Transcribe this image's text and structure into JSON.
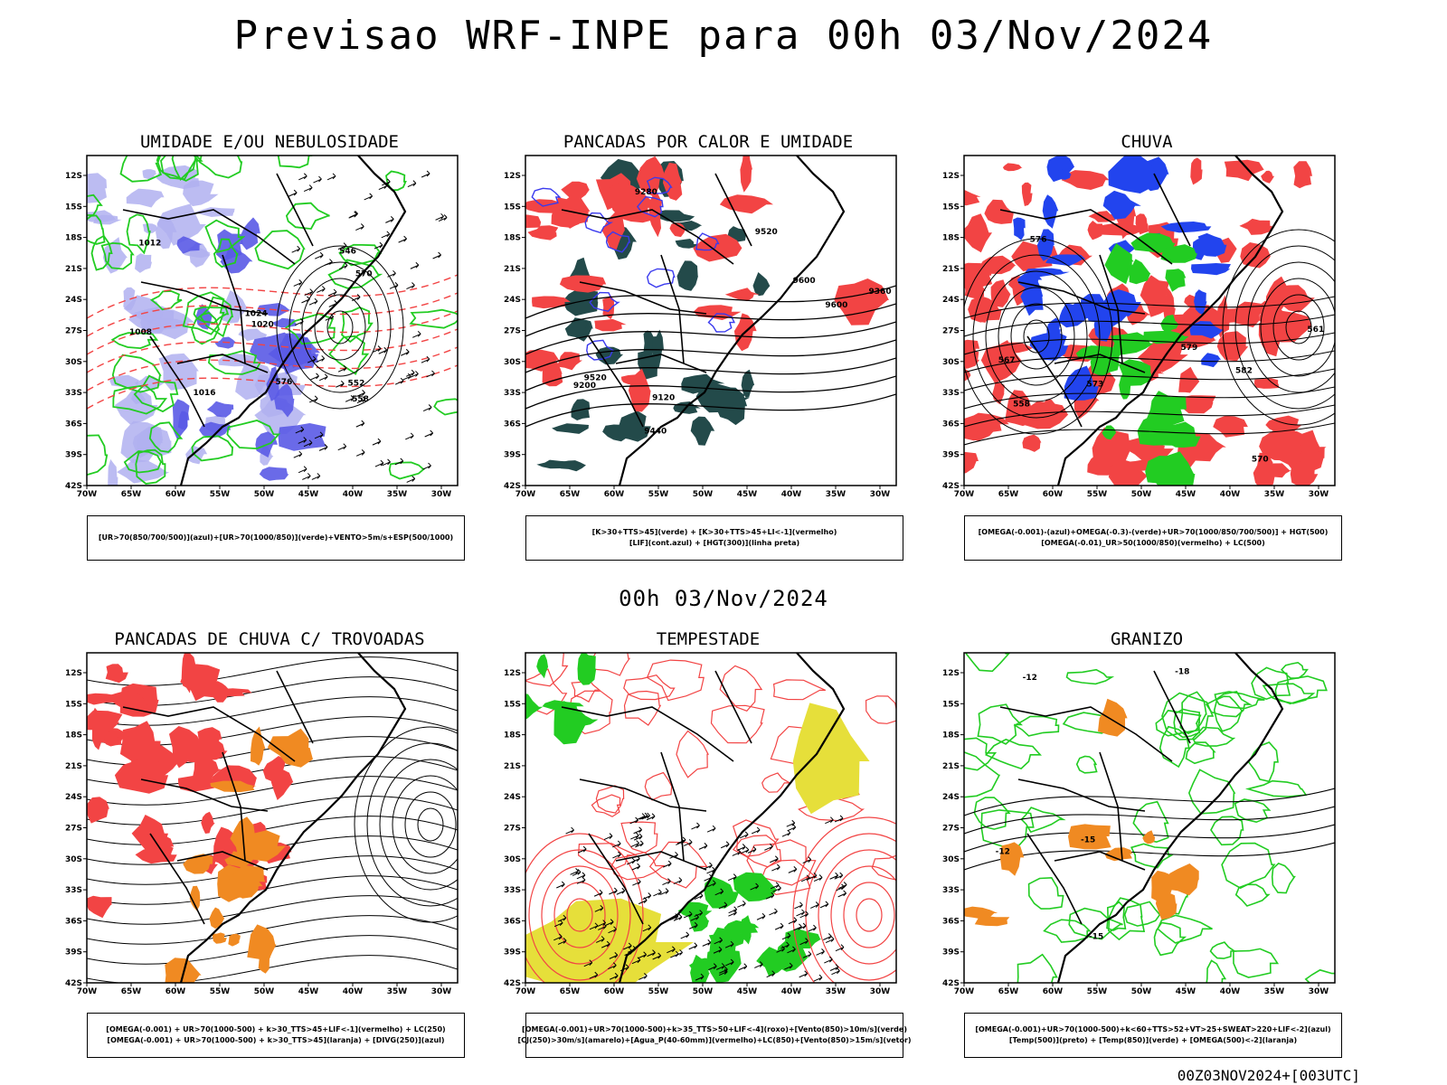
{
  "page": {
    "title": "Previsao WRF-INPE  para 00h 03/Nov/2024",
    "subtitle": "00h 03/Nov/2024",
    "footer": "00Z03NOV2024+[003UTC]"
  },
  "axes": {
    "lat_ticks": [
      "12S",
      "15S",
      "18S",
      "21S",
      "24S",
      "27S",
      "30S",
      "33S",
      "36S",
      "39S",
      "42S"
    ],
    "lon_ticks": [
      "70W",
      "65W",
      "60W",
      "55W",
      "50W",
      "45W",
      "40W",
      "35W",
      "30W"
    ]
  },
  "colors": {
    "blue_humidity": "#5a5ae6",
    "light_blue": "#b0b0f0",
    "green": "#22cc22",
    "red": "#f24444",
    "dark_teal": "#234a4a",
    "orange": "#f08a22",
    "yellow": "#e6df3a",
    "black": "#000000"
  },
  "panels": [
    {
      "id": "umidade",
      "title": "UMIDADE E/OU NEBULOSIDADE",
      "legend": [
        "[UR>70(850/700/500)](azul)+[UR>70(1000/850)](verde)+VENTO>5m/s+ESP(500/1000)"
      ],
      "contour_labels": [
        "1012",
        "1016",
        "1020",
        "1024",
        "1008",
        "570",
        "576",
        "558",
        "552",
        "546"
      ]
    },
    {
      "id": "pancadas-calor",
      "title": "PANCADAS POR CALOR E UMIDADE",
      "legend": [
        "[K>30+TTS>45](verde) + [K>30+TTS>45+LI<-1](vermelho)",
        "[LIF](cont.azul) + [HGT(300)](linha preta)"
      ],
      "contour_labels": [
        "9600",
        "9520",
        "9440",
        "9360",
        "9280",
        "9200",
        "9120",
        "9520",
        "9600"
      ]
    },
    {
      "id": "chuva",
      "title": "CHUVA",
      "legend": [
        "[OMEGA(-0.001)-(azul)+OMEGA(-0.3)-(verde)+UR>70(1000/850/700/500)] + HGT(500)",
        "[OMEGA(-0.01)_UR>50(1000/850)(vermelho) + LC(500)"
      ],
      "contour_labels": [
        "576",
        "573",
        "570",
        "567",
        "561",
        "558",
        "579",
        "582"
      ]
    },
    {
      "id": "pancadas-trovoadas",
      "title": "PANCADAS DE CHUVA C/ TROVOADAS",
      "legend": [
        "[OMEGA(-0.001) + UR>70(1000-500) + k>30_TTS>45+LIF<-1](vermelho) + LC(250)",
        "[OMEGA(-0.001) + UR>70(1000-500) + k>30_TTS>45](laranja) + [DIVG(250)](azul)"
      ],
      "contour_labels": []
    },
    {
      "id": "tempestade",
      "title": "TEMPESTADE",
      "legend": [
        "[OMEGA(-0.001)+UR>70(1000-500)+k>35_TTS>50+LIF<-4](roxo)+[Vento(850)>10m/s](verde)",
        "[CJ(250)>30m/s](amarelo)+[Agua_P(40-60mm)](vermelho)+LC(850)+[Vento(850)>15m/s](vetor)"
      ],
      "contour_labels": []
    },
    {
      "id": "granizo",
      "title": "GRANIZO",
      "legend": [
        "[OMEGA(-0.001)+UR>70(1000-500)+k<60+TTS>52+VT>25+SWEAT>220+LIF<-2](azul)",
        "[Temp(500)](preto) + [Temp(850)](verde) + [OMEGA(500)<-2](laranja)"
      ],
      "contour_labels": [
        "-12",
        "-15",
        "-18",
        "-12",
        "-15"
      ]
    }
  ]
}
